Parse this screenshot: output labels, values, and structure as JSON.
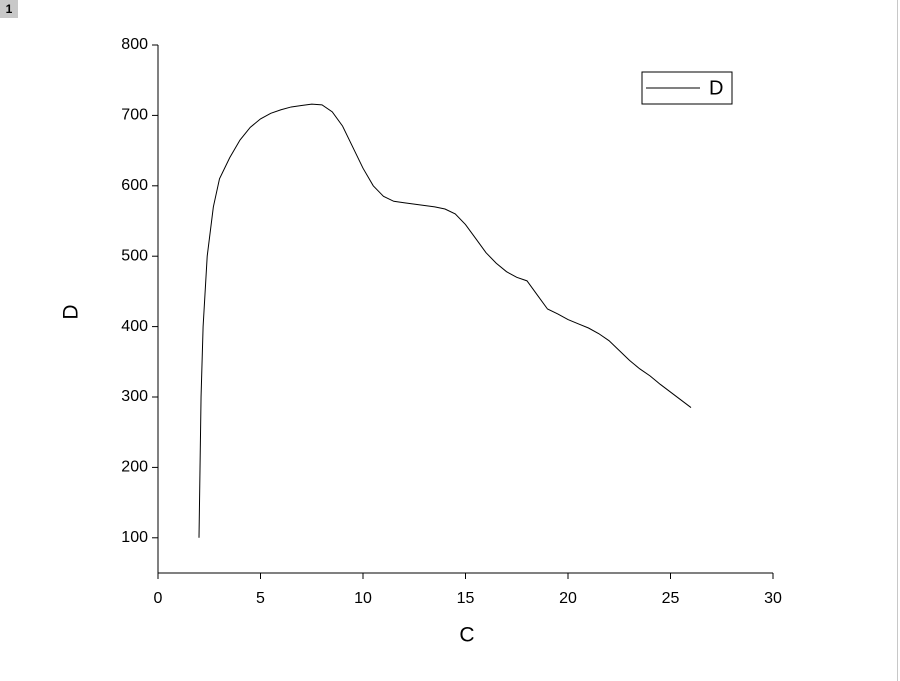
{
  "badge": "1",
  "chart_data": {
    "type": "line",
    "x_label": "C",
    "y_label": "D",
    "x": [
      2.0,
      2.1,
      2.2,
      2.4,
      2.7,
      3.0,
      3.5,
      4.0,
      4.5,
      5.0,
      5.5,
      6.0,
      6.5,
      7.0,
      7.5,
      8.0,
      8.5,
      9.0,
      9.5,
      10.0,
      10.5,
      11.0,
      11.5,
      12.0,
      12.5,
      13.0,
      13.5,
      14.0,
      14.5,
      15.0,
      15.5,
      16.0,
      16.5,
      17.0,
      17.5,
      18.0,
      18.5,
      19.0,
      19.5,
      20.0,
      20.5,
      21.0,
      21.5,
      22.0,
      22.5,
      23.0,
      23.5,
      24.0,
      24.5,
      25.0,
      25.5,
      26.0
    ],
    "series": [
      {
        "name": "D",
        "color": "#000000",
        "values": [
          100,
          300,
          400,
          500,
          570,
          610,
          640,
          665,
          683,
          695,
          703,
          708,
          712,
          714,
          716,
          715,
          705,
          685,
          655,
          625,
          600,
          585,
          578,
          576,
          574,
          572,
          570,
          567,
          560,
          545,
          525,
          505,
          490,
          478,
          470,
          465,
          445,
          425,
          418,
          410,
          404,
          398,
          390,
          380,
          366,
          352,
          340,
          330,
          318,
          307,
          296,
          285
        ]
      }
    ],
    "xlim": [
      0,
      30
    ],
    "xticks": [
      0,
      5,
      10,
      15,
      20,
      25,
      30
    ],
    "ylim": [
      50,
      800
    ],
    "yticks": [
      100,
      200,
      300,
      400,
      500,
      600,
      700,
      800
    ],
    "grid": false,
    "legend": "top-right"
  }
}
